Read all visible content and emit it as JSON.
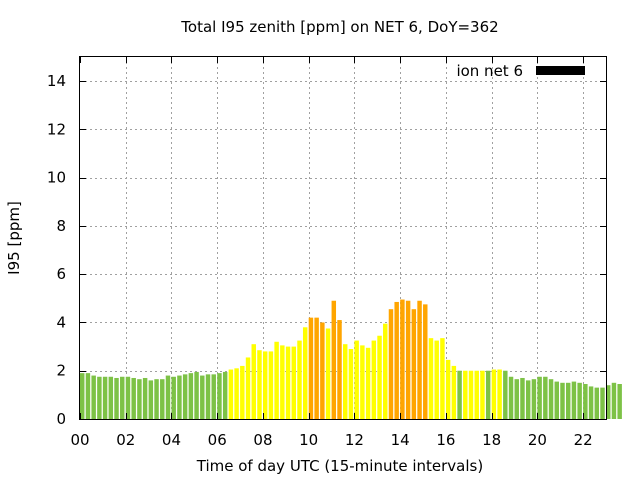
{
  "chart_data": {
    "type": "bar",
    "title": "Total I95 zenith [ppm] on NET 6, DoY=362",
    "xlabel": "Time of day UTC (15-minute intervals)",
    "ylabel": "I95 [ppm]",
    "ylim": [
      0,
      15
    ],
    "xlim": [
      0,
      23
    ],
    "x_ticks": [
      "00",
      "02",
      "04",
      "06",
      "08",
      "10",
      "12",
      "14",
      "16",
      "18",
      "20",
      "22"
    ],
    "y_ticks": [
      "0",
      "2",
      "4",
      "6",
      "8",
      "10",
      "12",
      "14"
    ],
    "grid": true,
    "legend": {
      "label": "ion net 6",
      "position": "top-right",
      "color": "#000000"
    },
    "bar_interval_hours": 0.25,
    "colors": {
      "low": "#7dc246",
      "medium": "#ffff00",
      "high": "#ffa500"
    },
    "values": [
      1.9,
      1.9,
      1.8,
      1.75,
      1.75,
      1.75,
      1.7,
      1.75,
      1.75,
      1.7,
      1.65,
      1.7,
      1.6,
      1.65,
      1.65,
      1.8,
      1.75,
      1.8,
      1.85,
      1.9,
      1.95,
      1.8,
      1.85,
      1.85,
      1.9,
      1.95,
      2.05,
      2.1,
      2.2,
      2.55,
      3.1,
      2.85,
      2.8,
      2.8,
      3.2,
      3.05,
      3.0,
      3.0,
      3.25,
      3.8,
      4.2,
      4.2,
      4.0,
      3.75,
      4.9,
      4.1,
      3.1,
      2.9,
      3.25,
      3.05,
      2.95,
      3.25,
      3.45,
      3.95,
      4.55,
      4.85,
      4.95,
      4.9,
      4.55,
      4.9,
      4.75,
      3.35,
      3.25,
      3.35,
      2.45,
      2.2,
      2.0,
      2.0,
      2.0,
      2.0,
      2.0,
      2.0,
      2.05,
      2.05,
      2.0,
      1.75,
      1.65,
      1.7,
      1.6,
      1.65,
      1.75,
      1.75,
      1.65,
      1.55,
      1.5,
      1.5,
      1.55,
      1.5,
      1.45,
      1.35,
      1.3,
      1.3,
      1.4,
      1.5,
      1.45
    ],
    "levels": [
      "low",
      "low",
      "low",
      "low",
      "low",
      "low",
      "low",
      "low",
      "low",
      "low",
      "low",
      "low",
      "low",
      "low",
      "low",
      "low",
      "low",
      "low",
      "low",
      "low",
      "low",
      "low",
      "low",
      "low",
      "low",
      "low",
      "medium",
      "medium",
      "medium",
      "medium",
      "medium",
      "medium",
      "medium",
      "medium",
      "medium",
      "medium",
      "medium",
      "medium",
      "medium",
      "medium",
      "high",
      "high",
      "high",
      "medium",
      "high",
      "high",
      "medium",
      "medium",
      "medium",
      "medium",
      "medium",
      "medium",
      "medium",
      "medium",
      "high",
      "high",
      "high",
      "high",
      "high",
      "high",
      "high",
      "medium",
      "medium",
      "medium",
      "medium",
      "medium",
      "low",
      "medium",
      "medium",
      "medium",
      "medium",
      "low",
      "medium",
      "medium",
      "low",
      "low",
      "low",
      "low",
      "low",
      "low",
      "low",
      "low",
      "low",
      "low",
      "low",
      "low",
      "low",
      "low",
      "low",
      "low",
      "low",
      "low",
      "low",
      "low",
      "low"
    ]
  }
}
